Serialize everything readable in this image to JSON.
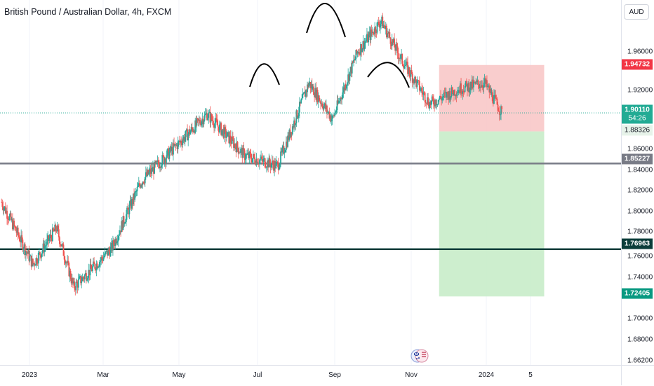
{
  "header": {
    "symbol_title": "British Pound / Australian Dollar, 4h, FXCM"
  },
  "price_axis": {
    "currency": "AUD",
    "ticks": [
      "1.96000",
      "1.92000",
      "1.86000",
      "1.84000",
      "1.82000",
      "1.80000",
      "1.78000",
      "1.76000",
      "1.74000",
      "1.70000",
      "1.68000",
      "1.66200"
    ],
    "labels": {
      "stop": "1.94732",
      "last": "1.90110",
      "countdown": "54:26",
      "entry": "1.88326",
      "level_upper": "1.85227",
      "level_lower": "1.76963",
      "target": "1.72405"
    }
  },
  "time_axis": {
    "labels": [
      "2023",
      "Mar",
      "May",
      "Jul",
      "Sep",
      "Nov",
      "2024",
      "5"
    ]
  },
  "colors": {
    "up": "#26a69a",
    "down": "#ef5350",
    "stop_zone": "#f8c4c4",
    "target_zone": "#c8ecc9",
    "last_price": "#22ab94",
    "stop_label": "#f23645",
    "target_label": "#089981",
    "level_upper": "#787b86",
    "level_lower": "#0b3d3a"
  },
  "icons": {
    "event": "flag-event-icon"
  },
  "chart_data": {
    "type": "candlestick",
    "title": "British Pound / Australian Dollar, 4h, FXCM",
    "x_range": [
      "2022-12-20",
      "2024-01-20"
    ],
    "y_range": [
      1.662,
      2.0
    ],
    "approx_closes": [
      {
        "x": "2022-12-21",
        "y": 1.815
      },
      {
        "x": "2023-01-10",
        "y": 1.755
      },
      {
        "x": "2023-01-25",
        "y": 1.79
      },
      {
        "x": "2023-02-05",
        "y": 1.733
      },
      {
        "x": "2023-03-01",
        "y": 1.77
      },
      {
        "x": "2023-03-20",
        "y": 1.835
      },
      {
        "x": "2023-04-15",
        "y": 1.875
      },
      {
        "x": "2023-05-01",
        "y": 1.9
      },
      {
        "x": "2023-05-25",
        "y": 1.86
      },
      {
        "x": "2023-06-15",
        "y": 1.85
      },
      {
        "x": "2023-07-05",
        "y": 1.93
      },
      {
        "x": "2023-07-20",
        "y": 1.895
      },
      {
        "x": "2023-08-05",
        "y": 1.96
      },
      {
        "x": "2023-08-20",
        "y": 1.99
      },
      {
        "x": "2023-09-01",
        "y": 1.955
      },
      {
        "x": "2023-09-20",
        "y": 1.91
      },
      {
        "x": "2023-10-10",
        "y": 1.925
      },
      {
        "x": "2023-10-25",
        "y": 1.93
      },
      {
        "x": "2023-11-05",
        "y": 1.901
      }
    ],
    "horizontal_levels": [
      1.85227,
      1.76963
    ],
    "short_position": {
      "entry": 1.88326,
      "stop": 1.94732,
      "target": 1.72405,
      "from": "2023-09-26",
      "to": "2023-12-02"
    },
    "annotations": [
      "head-and-shoulders arcs"
    ]
  }
}
